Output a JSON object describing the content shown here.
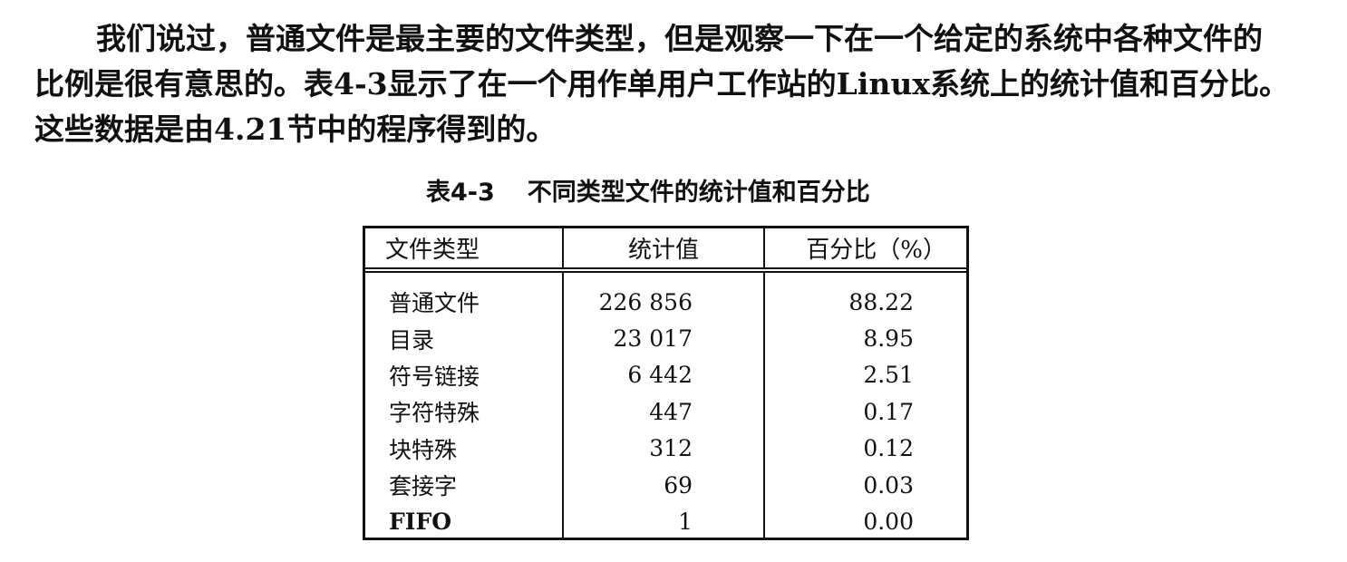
{
  "paragraph": {
    "line1": "我们说过，普通文件是最主要的文件类型，但是观察一下在一个给定的系统中各种文件的",
    "line2": "比例是很有意思的。表4-3显示了在一个用作单用户工作站的Linux系统上的统计值和百分比。",
    "line3": "这些数据是由4.21节中的程序得到的。"
  },
  "caption": {
    "number": "表4-3",
    "title": "不同类型文件的统计值和百分比"
  },
  "table": {
    "headers": [
      "文件类型",
      "统计值",
      "百分比（%）"
    ],
    "rows": [
      {
        "type": "普通文件",
        "count": "226 856",
        "percent": "88.22"
      },
      {
        "type": "目录",
        "count": "23 017",
        "percent": "8.95"
      },
      {
        "type": "符号链接",
        "count": "6 442",
        "percent": "2.51"
      },
      {
        "type": "字符特殊",
        "count": "447",
        "percent": "0.17"
      },
      {
        "type": "块特殊",
        "count": "312",
        "percent": "0.12"
      },
      {
        "type": "套接字",
        "count": "69",
        "percent": "0.03"
      },
      {
        "type": "FIFO",
        "count": "1",
        "percent": "0.00"
      }
    ]
  }
}
